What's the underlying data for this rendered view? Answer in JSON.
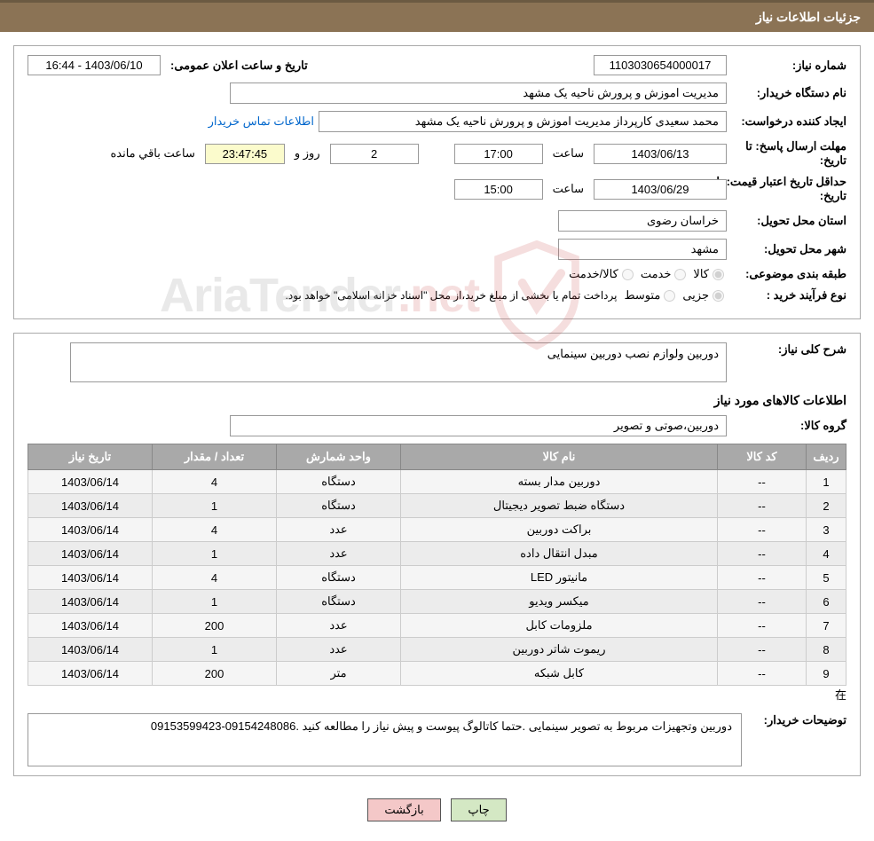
{
  "header": {
    "title": "جزئیات اطلاعات نیاز"
  },
  "form": {
    "need_number_label": "شماره نیاز:",
    "need_number": "1103030654000017",
    "announce_label": "تاریخ و ساعت اعلان عمومی:",
    "announce_value": "1403/06/10 - 16:44",
    "buyer_org_label": "نام دستگاه خریدار:",
    "buyer_org": "مدیریت اموزش و پرورش ناحیه یک مشهد",
    "requester_label": "ایجاد کننده درخواست:",
    "requester": "محمد سعیدی کارپرداز مدیریت اموزش و پرورش ناحیه یک مشهد",
    "contact_link": "اطلاعات تماس خریدار",
    "deadline_label": "مهلت ارسال پاسخ: تا تاریخ:",
    "deadline_date": "1403/06/13",
    "hour_word": "ساعت",
    "deadline_hour": "17:00",
    "days_remaining": "2",
    "day_and_word": "روز و",
    "time_remaining": "23:47:45",
    "remaining_word": "ساعت باقي مانده",
    "validity_label": "حداقل تاریخ اعتبار قیمت: تا تاریخ:",
    "validity_date": "1403/06/29",
    "validity_hour": "15:00",
    "province_label": "استان محل تحویل:",
    "province": "خراسان رضوی",
    "city_label": "شهر محل تحویل:",
    "city": "مشهد",
    "category_label": "طبقه بندی موضوعی:",
    "cat_goods": "کالا",
    "cat_service": "خدمت",
    "cat_both": "کالا/خدمت",
    "purchase_type_label": "نوع فرآیند خرید :",
    "pt_partial": "جزیی",
    "pt_medium": "متوسط",
    "purchase_note": "پرداخت تمام یا بخشی از مبلغ خرید،از محل \"اسناد خزانه اسلامی\" خواهد بود."
  },
  "need": {
    "overall_label": "شرح کلی نیاز:",
    "overall_text": "دوربین ولوازم نصب دوربین سینمایی",
    "goods_info_title": "اطلاعات کالاهای مورد نیاز",
    "group_label": "گروه کالا:",
    "group_value": "دوربین،صوتی و تصویر"
  },
  "table": {
    "headers": {
      "idx": "ردیف",
      "code": "کد کالا",
      "name": "نام کالا",
      "unit": "واحد شمارش",
      "qty": "تعداد / مقدار",
      "date": "تاریخ نیاز"
    },
    "rows": [
      {
        "idx": "1",
        "code": "--",
        "name": "دوربین مدار بسته",
        "unit": "دستگاه",
        "qty": "4",
        "date": "1403/06/14"
      },
      {
        "idx": "2",
        "code": "--",
        "name": "دستگاه ضبط تصویر دیجیتال",
        "unit": "دستگاه",
        "qty": "1",
        "date": "1403/06/14"
      },
      {
        "idx": "3",
        "code": "--",
        "name": "براکت دوربین",
        "unit": "عدد",
        "qty": "4",
        "date": "1403/06/14"
      },
      {
        "idx": "4",
        "code": "--",
        "name": "مبدل انتقال داده",
        "unit": "عدد",
        "qty": "1",
        "date": "1403/06/14"
      },
      {
        "idx": "5",
        "code": "--",
        "name": "مانیتور LED",
        "unit": "دستگاه",
        "qty": "4",
        "date": "1403/06/14"
      },
      {
        "idx": "6",
        "code": "--",
        "name": "میکسر ویدیو",
        "unit": "دستگاه",
        "qty": "1",
        "date": "1403/06/14"
      },
      {
        "idx": "7",
        "code": "--",
        "name": "ملزومات کابل",
        "unit": "عدد",
        "qty": "200",
        "date": "1403/06/14"
      },
      {
        "idx": "8",
        "code": "--",
        "name": "ریموت شاتر دوربین",
        "unit": "عدد",
        "qty": "1",
        "date": "1403/06/14"
      },
      {
        "idx": "9",
        "code": "--",
        "name": "کابل شبکه",
        "unit": "متر",
        "qty": "200",
        "date": "1403/06/14"
      }
    ]
  },
  "buyer_notes": {
    "label": "توضیحات خریدار:",
    "text": "دوربین وتجهیزات مربوط به تصویر سینمایی .حتما کاتالوگ پیوست و پیش نیاز را مطالعه کنید .09154248086-09153599423"
  },
  "buttons": {
    "print": "چاپ",
    "back": "بازگشت"
  },
  "watermark": {
    "text_main": "AriaTender",
    "text_suffix": ".net"
  },
  "colors": {
    "header_bg": "#8b7355",
    "header_border": "#6b5a42",
    "th_bg": "#a9a9a9",
    "time_bg": "#fbfbcc",
    "btn_print": "#d4e8c4",
    "btn_back": "#f4c8c8",
    "link": "#0066cc"
  }
}
